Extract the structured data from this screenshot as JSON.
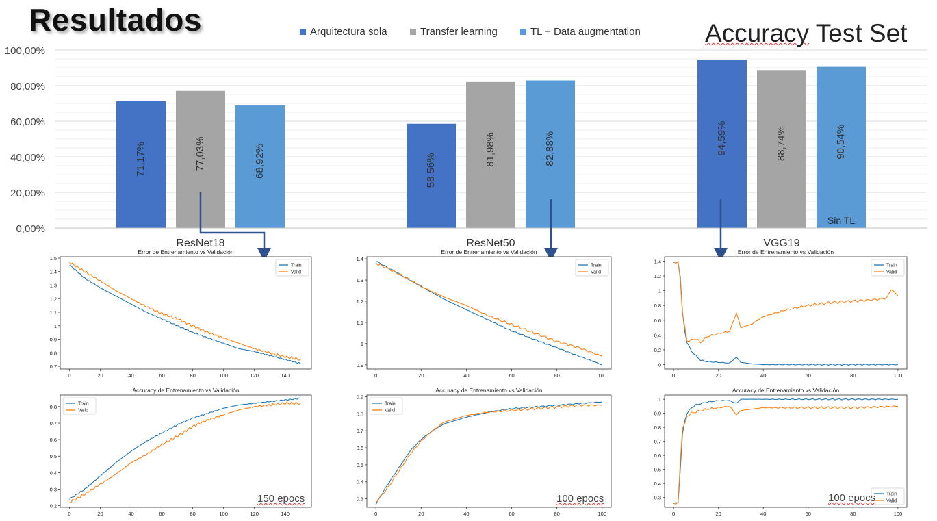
{
  "slide": {
    "title": "Resultados",
    "accuracy_title_part1": "Accuracy",
    "accuracy_title_part2": " Test Set",
    "sin_tl_label": "Sin TL"
  },
  "colors": {
    "series1": "#4472C4",
    "series2": "#A5A5A5",
    "series3": "#5B9BD5",
    "train": "#1f77b4",
    "valid": "#ff7f0e",
    "arrow": "#2F528F"
  },
  "chart_data": [
    {
      "type": "bar",
      "title": "Accuracy Test Set",
      "categories": [
        "ResNet18",
        "ResNet50",
        "VGG19"
      ],
      "series": [
        {
          "name": "Arquitectura sola",
          "values": [
            71.17,
            58.56,
            94.59
          ],
          "labels": [
            "71,17%",
            "58,56%",
            "94,59%"
          ]
        },
        {
          "name": "Transfer learning",
          "values": [
            77.03,
            81.98,
            88.74
          ],
          "labels": [
            "77,03%",
            "81,98%",
            "88,74%"
          ]
        },
        {
          "name": "TL + Data augmentation",
          "values": [
            68.92,
            82.88,
            90.54
          ],
          "labels": [
            "68,92%",
            "82,88%",
            "90,54%"
          ]
        }
      ],
      "ylim": [
        0,
        100
      ],
      "yticks": [
        "0,00%",
        "20,00%",
        "40,00%",
        "60,00%",
        "80,00%",
        "100,00%"
      ],
      "grid": true,
      "legend": "top"
    },
    {
      "type": "line",
      "title": "Error de Entrenamiento vs Validación",
      "model": "ResNet18",
      "xticks": [
        0,
        20,
        40,
        60,
        80,
        100,
        120,
        140
      ],
      "xlim": [
        -6,
        157
      ],
      "yticks": [
        0.7,
        0.8,
        0.9,
        1.0,
        1.1,
        1.2,
        1.3,
        1.4,
        1.5
      ],
      "ylim": [
        0.68,
        1.51
      ],
      "series": [
        {
          "name": "Train",
          "x": [
            0,
            10,
            20,
            30,
            40,
            50,
            60,
            70,
            80,
            90,
            100,
            110,
            120,
            130,
            140,
            150
          ],
          "y": [
            1.45,
            1.35,
            1.28,
            1.22,
            1.16,
            1.1,
            1.05,
            1.0,
            0.95,
            0.91,
            0.87,
            0.83,
            0.81,
            0.78,
            0.75,
            0.72
          ]
        },
        {
          "name": "Valid",
          "x": [
            0,
            10,
            20,
            30,
            40,
            50,
            60,
            70,
            80,
            90,
            100,
            110,
            120,
            130,
            140,
            150
          ],
          "y": [
            1.47,
            1.4,
            1.33,
            1.26,
            1.2,
            1.14,
            1.09,
            1.05,
            1.0,
            0.95,
            0.91,
            0.87,
            0.83,
            0.8,
            0.77,
            0.75
          ]
        }
      ],
      "legend": "upper right"
    },
    {
      "type": "line",
      "title": "Error de Entrenamiento vs Validación",
      "model": "ResNet50",
      "xticks": [
        0,
        20,
        40,
        60,
        80,
        100
      ],
      "xlim": [
        -4,
        104
      ],
      "yticks": [
        0.9,
        1.0,
        1.1,
        1.2,
        1.3,
        1.4
      ],
      "ylim": [
        0.88,
        1.41
      ],
      "series": [
        {
          "name": "Train",
          "x": [
            0,
            10,
            20,
            30,
            40,
            50,
            60,
            70,
            80,
            90,
            100
          ],
          "y": [
            1.39,
            1.33,
            1.27,
            1.21,
            1.16,
            1.11,
            1.06,
            1.02,
            0.98,
            0.94,
            0.9
          ]
        },
        {
          "name": "Valid",
          "x": [
            0,
            10,
            20,
            30,
            40,
            50,
            60,
            70,
            80,
            90,
            100
          ],
          "y": [
            1.38,
            1.33,
            1.27,
            1.22,
            1.18,
            1.13,
            1.09,
            1.05,
            1.01,
            0.98,
            0.94
          ]
        }
      ],
      "legend": "upper right"
    },
    {
      "type": "line",
      "title": "Error de Entrenamiento vs Validación",
      "model": "VGG19",
      "xticks": [
        0,
        20,
        40,
        60,
        80,
        100
      ],
      "xlim": [
        -4,
        104
      ],
      "yticks": [
        0.0,
        0.2,
        0.4,
        0.6,
        0.8,
        1.0,
        1.2,
        1.4
      ],
      "ylim": [
        -0.06,
        1.46
      ],
      "series": [
        {
          "name": "Train",
          "x": [
            0,
            2,
            3,
            4,
            5,
            6,
            8,
            10,
            12,
            15,
            20,
            25,
            28,
            30,
            35,
            40,
            60,
            80,
            100
          ],
          "y": [
            1.39,
            1.38,
            1.2,
            0.7,
            0.45,
            0.3,
            0.18,
            0.12,
            0.06,
            0.04,
            0.03,
            0.02,
            0.1,
            0.03,
            0.01,
            0.0,
            0.0,
            0.0,
            0.0
          ]
        },
        {
          "name": "Valid",
          "x": [
            0,
            2,
            3,
            4,
            5,
            6,
            8,
            10,
            12,
            15,
            20,
            25,
            28,
            30,
            35,
            40,
            50,
            60,
            70,
            80,
            90,
            95,
            97,
            100
          ],
          "y": [
            1.39,
            1.38,
            1.15,
            0.7,
            0.5,
            0.32,
            0.33,
            0.35,
            0.3,
            0.38,
            0.42,
            0.45,
            0.7,
            0.5,
            0.55,
            0.65,
            0.74,
            0.8,
            0.84,
            0.86,
            0.88,
            0.9,
            1.02,
            0.93
          ]
        }
      ],
      "legend": "upper right"
    },
    {
      "type": "line",
      "title": "Accuracy de Entrenamiento vs Validación",
      "model": "ResNet18",
      "xticks": [
        0,
        20,
        40,
        60,
        80,
        100,
        120,
        140
      ],
      "xlim": [
        -6,
        157
      ],
      "yticks": [
        0.2,
        0.3,
        0.4,
        0.5,
        0.6,
        0.7,
        0.8
      ],
      "ylim": [
        0.19,
        0.87
      ],
      "series": [
        {
          "name": "Train",
          "x": [
            0,
            10,
            20,
            30,
            40,
            50,
            60,
            70,
            80,
            90,
            100,
            110,
            120,
            130,
            140,
            150
          ],
          "y": [
            0.24,
            0.3,
            0.38,
            0.46,
            0.53,
            0.59,
            0.64,
            0.69,
            0.73,
            0.76,
            0.79,
            0.81,
            0.82,
            0.83,
            0.84,
            0.85
          ]
        },
        {
          "name": "Valid",
          "x": [
            0,
            10,
            20,
            30,
            40,
            50,
            60,
            70,
            80,
            90,
            100,
            110,
            120,
            130,
            140,
            150
          ],
          "y": [
            0.22,
            0.27,
            0.33,
            0.39,
            0.46,
            0.51,
            0.57,
            0.62,
            0.68,
            0.72,
            0.75,
            0.78,
            0.8,
            0.81,
            0.82,
            0.82
          ]
        }
      ],
      "legend": "upper left",
      "annotation": "150 epocs"
    },
    {
      "type": "line",
      "title": "Accuracy de Entrenamiento vs Validación",
      "model": "ResNet50",
      "xticks": [
        0,
        20,
        40,
        60,
        80,
        100
      ],
      "xlim": [
        -4,
        104
      ],
      "yticks": [
        0.3,
        0.4,
        0.5,
        0.6,
        0.7,
        0.8,
        0.9
      ],
      "ylim": [
        0.25,
        0.91
      ],
      "series": [
        {
          "name": "Train",
          "x": [
            0,
            5,
            10,
            15,
            20,
            25,
            30,
            40,
            50,
            60,
            70,
            80,
            90,
            100
          ],
          "y": [
            0.27,
            0.38,
            0.48,
            0.58,
            0.65,
            0.7,
            0.74,
            0.78,
            0.81,
            0.83,
            0.84,
            0.85,
            0.86,
            0.87
          ]
        },
        {
          "name": "Valid",
          "x": [
            0,
            5,
            10,
            15,
            20,
            25,
            30,
            40,
            50,
            60,
            70,
            80,
            90,
            100
          ],
          "y": [
            0.28,
            0.36,
            0.46,
            0.56,
            0.64,
            0.7,
            0.75,
            0.79,
            0.81,
            0.82,
            0.83,
            0.84,
            0.85,
            0.85
          ]
        }
      ],
      "legend": "upper left",
      "annotation": "100 epocs"
    },
    {
      "type": "line",
      "title": "Accuracy de Entrenamiento vs Validación",
      "model": "VGG19",
      "xticks": [
        0,
        20,
        40,
        60,
        80,
        100
      ],
      "xlim": [
        -4,
        104
      ],
      "yticks": [
        0.3,
        0.4,
        0.5,
        0.6,
        0.7,
        0.8,
        0.9,
        1.0
      ],
      "ylim": [
        0.23,
        1.03
      ],
      "series": [
        {
          "name": "Train",
          "x": [
            0,
            2,
            3,
            4,
            5,
            6,
            8,
            10,
            15,
            20,
            25,
            28,
            30,
            35,
            40,
            60,
            80,
            100
          ],
          "y": [
            0.26,
            0.26,
            0.5,
            0.75,
            0.85,
            0.9,
            0.94,
            0.96,
            0.98,
            0.99,
            0.99,
            0.97,
            1.0,
            1.0,
            1.0,
            1.0,
            1.0,
            1.0
          ]
        },
        {
          "name": "Valid",
          "x": [
            0,
            2,
            3,
            4,
            5,
            6,
            8,
            10,
            15,
            20,
            25,
            28,
            30,
            35,
            40,
            60,
            80,
            100
          ],
          "y": [
            0.26,
            0.26,
            0.55,
            0.8,
            0.82,
            0.88,
            0.9,
            0.91,
            0.93,
            0.94,
            0.95,
            0.89,
            0.92,
            0.93,
            0.94,
            0.94,
            0.94,
            0.95
          ]
        }
      ],
      "legend": "lower right",
      "annotation": "100 epocs"
    }
  ]
}
